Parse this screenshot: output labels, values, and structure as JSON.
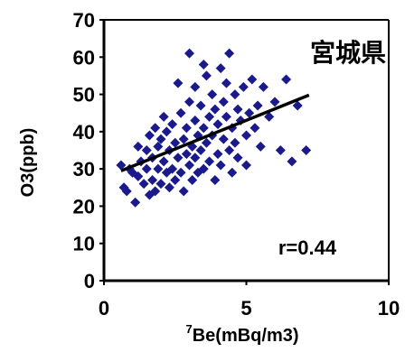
{
  "chart_data": {
    "type": "scatter",
    "title": "宮城県",
    "xlabel_superscript": "7",
    "xlabel": "Be(mBq/m3)",
    "ylabel": "O3(ppb)",
    "xlim": [
      0,
      10
    ],
    "ylim": [
      0,
      70
    ],
    "x_ticks": [
      0,
      5,
      10
    ],
    "y_ticks": [
      0,
      10,
      20,
      30,
      40,
      50,
      60,
      70
    ],
    "annotation": "r=0.44",
    "grid": false,
    "marker": "diamond",
    "marker_color": "#1a1a8c",
    "trendline": {
      "x": [
        0.6,
        7.2
      ],
      "y": [
        29.5,
        49.8
      ],
      "color": "#000000"
    },
    "series": [
      {
        "points": [
          [
            0.6,
            31
          ],
          [
            0.7,
            25
          ],
          [
            0.8,
            24
          ],
          [
            0.9,
            30
          ],
          [
            1.0,
            29
          ],
          [
            1.1,
            21
          ],
          [
            1.2,
            28
          ],
          [
            1.2,
            36
          ],
          [
            1.3,
            32
          ],
          [
            1.4,
            26
          ],
          [
            1.5,
            35
          ],
          [
            1.5,
            30
          ],
          [
            1.6,
            23
          ],
          [
            1.6,
            39
          ],
          [
            1.7,
            27
          ],
          [
            1.7,
            33
          ],
          [
            1.8,
            41
          ],
          [
            1.8,
            24
          ],
          [
            1.9,
            30
          ],
          [
            1.9,
            36
          ],
          [
            2.0,
            38
          ],
          [
            2.0,
            26
          ],
          [
            2.1,
            44
          ],
          [
            2.1,
            32
          ],
          [
            2.2,
            29
          ],
          [
            2.2,
            40
          ],
          [
            2.3,
            25
          ],
          [
            2.3,
            35
          ],
          [
            2.4,
            42
          ],
          [
            2.4,
            30
          ],
          [
            2.5,
            37
          ],
          [
            2.5,
            27
          ],
          [
            2.6,
            53
          ],
          [
            2.6,
            33
          ],
          [
            2.7,
            45
          ],
          [
            2.7,
            29
          ],
          [
            2.8,
            38
          ],
          [
            2.8,
            24
          ],
          [
            2.9,
            34
          ],
          [
            2.9,
            41
          ],
          [
            3.0,
            61
          ],
          [
            3.0,
            48
          ],
          [
            3.0,
            31
          ],
          [
            3.1,
            36
          ],
          [
            3.1,
            27
          ],
          [
            3.2,
            52
          ],
          [
            3.2,
            43
          ],
          [
            3.2,
            33
          ],
          [
            3.3,
            39
          ],
          [
            3.3,
            29
          ],
          [
            3.4,
            47
          ],
          [
            3.4,
            35
          ],
          [
            3.5,
            58
          ],
          [
            3.5,
            41
          ],
          [
            3.5,
            30
          ],
          [
            3.6,
            55
          ],
          [
            3.6,
            37
          ],
          [
            3.7,
            44
          ],
          [
            3.7,
            32
          ],
          [
            3.8,
            50
          ],
          [
            3.8,
            39
          ],
          [
            3.9,
            27
          ],
          [
            3.9,
            46
          ],
          [
            4.0,
            34
          ],
          [
            4.0,
            42
          ],
          [
            4.1,
            57
          ],
          [
            4.1,
            31
          ],
          [
            4.2,
            48
          ],
          [
            4.2,
            38
          ],
          [
            4.3,
            53
          ],
          [
            4.3,
            44
          ],
          [
            4.4,
            35
          ],
          [
            4.4,
            61
          ],
          [
            4.5,
            41
          ],
          [
            4.5,
            29
          ],
          [
            4.6,
            50
          ],
          [
            4.6,
            37
          ],
          [
            4.7,
            46
          ],
          [
            4.7,
            33
          ],
          [
            4.8,
            43
          ],
          [
            4.9,
            52
          ],
          [
            5.0,
            39
          ],
          [
            5.0,
            31
          ],
          [
            5.1,
            45
          ],
          [
            5.2,
            54
          ],
          [
            5.3,
            41
          ],
          [
            5.4,
            47
          ],
          [
            5.5,
            36
          ],
          [
            5.6,
            52
          ],
          [
            5.8,
            44
          ],
          [
            6.0,
            48
          ],
          [
            6.2,
            35
          ],
          [
            6.4,
            54
          ],
          [
            6.6,
            32
          ],
          [
            6.8,
            47
          ],
          [
            7.1,
            35
          ]
        ]
      }
    ]
  }
}
